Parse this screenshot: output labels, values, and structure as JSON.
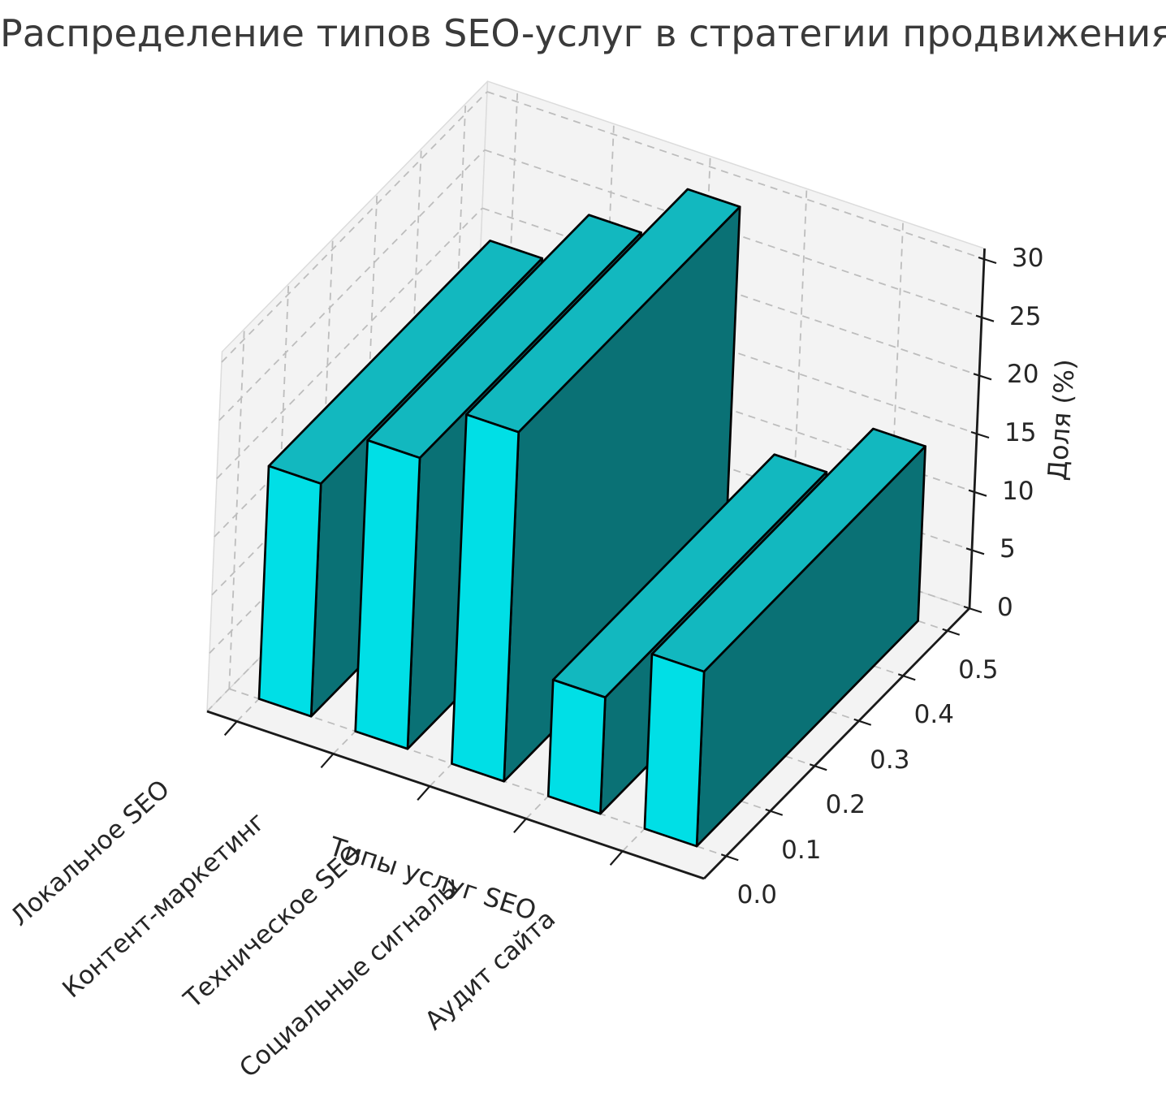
{
  "title": "Распределение типов SEO-услуг в стратегии продвижения",
  "chart_data": {
    "type": "bar",
    "projection": "3d",
    "title": "Распределение типов SEO-услуг в стратегии продвижения",
    "categories": [
      "Локальное SEO",
      "Контент-маркетинг",
      "Техническое SEO",
      "Социальные сигналы",
      "Аудит сайта"
    ],
    "values": [
      20,
      25,
      30,
      10,
      15
    ],
    "unit": "%",
    "xlabel": "Типы услуг SEO",
    "zlabel": "Доля (%)",
    "y_ticks": [
      "0.0",
      "0.1",
      "0.2",
      "0.3",
      "0.4",
      "0.5"
    ],
    "z_ticks": [
      "0",
      "5",
      "10",
      "15",
      "20",
      "25",
      "30"
    ],
    "zlim": [
      0,
      30
    ],
    "grid": true,
    "grid_style": "dashed",
    "legend": "none",
    "colors": {
      "bar_front": "#00dfe6",
      "bar_side": "#0a7175",
      "bar_top": "#12b8bf",
      "bar_edge": "#000000",
      "pane": "#f3f3f3",
      "pane_edge": "#dcdcdc",
      "grid": "#bdbdbd",
      "axis": "#1a1a1a",
      "text": "#262626"
    }
  }
}
